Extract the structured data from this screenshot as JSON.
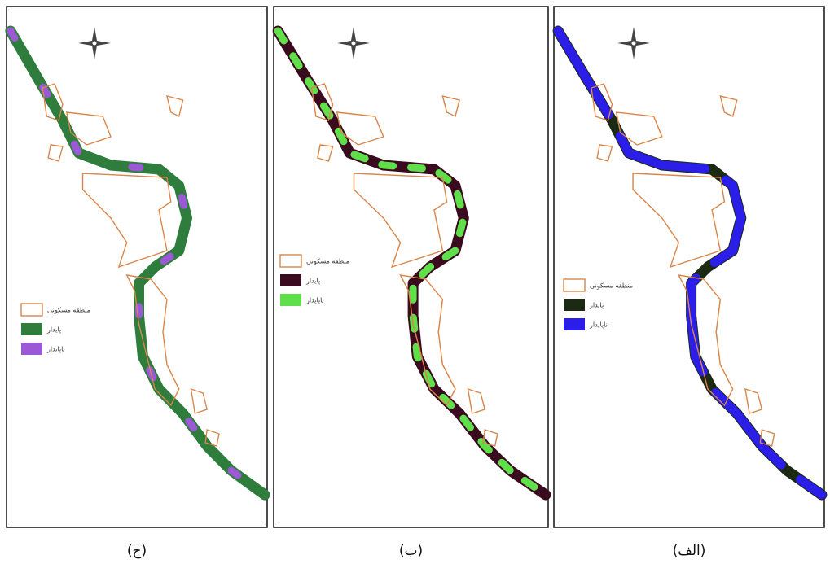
{
  "panels": [
    {
      "caption": "(ج)",
      "legend": [
        {
          "label": "منطقه مسکونی",
          "color": "#ffffff"
        },
        {
          "label": "پایدار",
          "color": "#2e7d3c"
        },
        {
          "label": "ناپایدار",
          "color": "#9b59d6"
        }
      ]
    },
    {
      "caption": "(ب)",
      "legend": [
        {
          "label": "منطقه مسکونی",
          "color": "#ffffff"
        },
        {
          "label": "پایدار",
          "color": "#3a0a1e"
        },
        {
          "label": "ناپایدار",
          "color": "#5fe04a"
        }
      ]
    },
    {
      "caption": "(الف)",
      "legend": [
        {
          "label": "منطقه مسکونی",
          "color": "#ffffff"
        },
        {
          "label": "پایدار",
          "color": "#1c2a14"
        },
        {
          "label": "ناپایدار",
          "color": "#2a1ee8"
        }
      ]
    }
  ]
}
